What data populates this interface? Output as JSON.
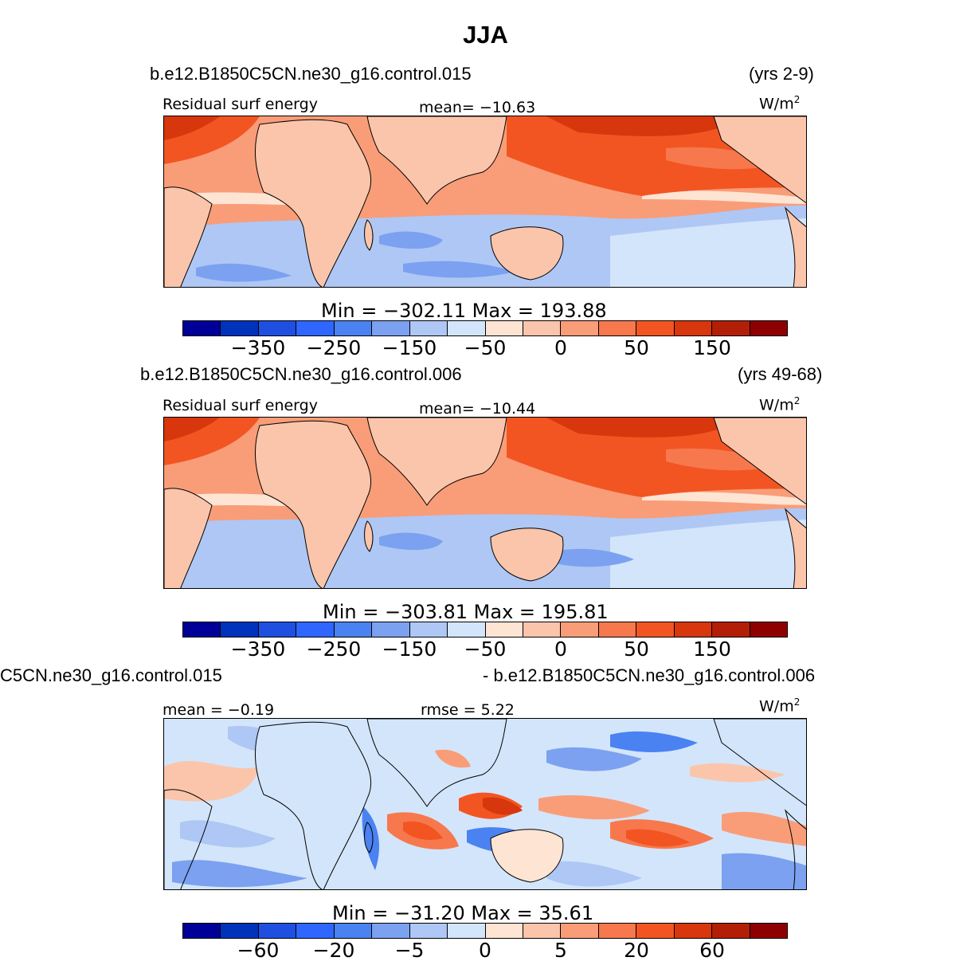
{
  "title": "JJA",
  "units": "W/m",
  "units_sup": "2",
  "panels": [
    {
      "case": "b.e12.B1850C5CN.ne30_g16.control.015",
      "years": "(yrs 2-9)",
      "varname": "Residual surf energy",
      "stat1": "mean=  −10.63",
      "minmax": "Min  =  −302.11  Max  =  193.88",
      "ticks": [
        "−350",
        "−250",
        "−150",
        "−50",
        "0",
        "50",
        "150"
      ],
      "colors": [
        "#000099",
        "#0033bb",
        "#1f4fe0",
        "#2f66ff",
        "#4a82f2",
        "#7ba1f0",
        "#aec7f5",
        "#d3e5fa",
        "#fde4d3",
        "#fbc5ab",
        "#f99d78",
        "#f7784d",
        "#f25522",
        "#d8360c",
        "#b31f06",
        "#8e0000"
      ]
    },
    {
      "case": "b.e12.B1850C5CN.ne30_g16.control.006",
      "years": "(yrs 49-68)",
      "varname": "Residual surf energy",
      "stat1": "mean=  −10.44",
      "minmax": "Min  =  −303.81  Max  =  195.81",
      "ticks": [
        "−350",
        "−250",
        "−150",
        "−50",
        "0",
        "50",
        "150"
      ],
      "colors": [
        "#000099",
        "#0033bb",
        "#1f4fe0",
        "#2f66ff",
        "#4a82f2",
        "#7ba1f0",
        "#aec7f5",
        "#d3e5fa",
        "#fde4d3",
        "#fbc5ab",
        "#f99d78",
        "#f7784d",
        "#f25522",
        "#d8360c",
        "#b31f06",
        "#8e0000"
      ]
    },
    {
      "case_left": "C5CN.ne30_g16.control.015",
      "case_right": "- b.e12.B1850C5CN.ne30_g16.control.006",
      "stat1": "mean =   −0.19",
      "stat2": "rmse =    5.22",
      "minmax": "Min  =  −31.20  Max  =   35.61",
      "ticks": [
        "−60",
        "−20",
        "−5",
        "0",
        "5",
        "20",
        "60"
      ],
      "colors": [
        "#000099",
        "#0033bb",
        "#1f4fe0",
        "#2f66ff",
        "#4a82f2",
        "#7ba1f0",
        "#aec7f5",
        "#d3e5fa",
        "#fde4d3",
        "#fbc5ab",
        "#f99d78",
        "#f7784d",
        "#f25522",
        "#d8360c",
        "#b31f06",
        "#8e0000"
      ]
    }
  ]
}
